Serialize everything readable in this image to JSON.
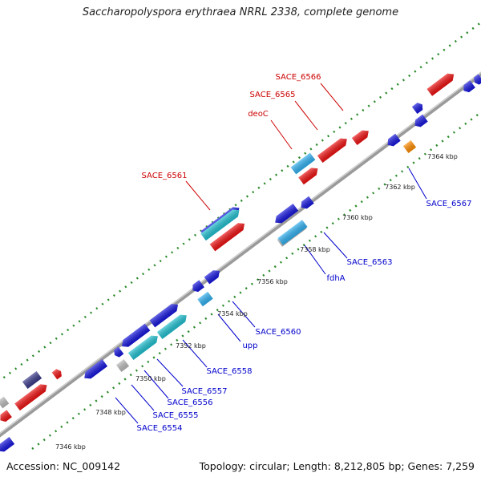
{
  "title": "Saccharopolyspora erythraea NRRL 2338, complete genome",
  "footer": {
    "accession": "Accession: NC_009142",
    "topology": "Topology: circular; Length: 8,212,805 bp; Genes: 7,259"
  },
  "ticks": [
    "7346 kbp",
    "7348 kbp",
    "7350 kbp",
    "7352 kbp",
    "7354 kbp",
    "7356 kbp",
    "7358 kbp",
    "7360 kbp",
    "7362 kbp",
    "7364 kbp"
  ],
  "gene_labels_plus": [
    "SACE_6561",
    "deoC",
    "SACE_6565",
    "SACE_6566"
  ],
  "gene_labels_minus": [
    "SACE_6554",
    "SACE_6555",
    "SACE_6556",
    "SACE_6557",
    "SACE_6558",
    "upp",
    "SACE_6560",
    "fdhA",
    "SACE_6563",
    "SACE_6567"
  ],
  "colors": {
    "plus_label": "#cc0000",
    "minus_label": "#0000cc",
    "red_gene": "#ee1111",
    "blue_gene": "#1515dd",
    "cyan_gene": "#20c0d0",
    "light_blue_gene": "#30b0f0",
    "orange_gene": "#ff8c00",
    "grey_gene": "#bbbbbb",
    "navy_gene": "#3a3a8a",
    "backbone": "#888888",
    "dots": "#2a8a2a"
  }
}
